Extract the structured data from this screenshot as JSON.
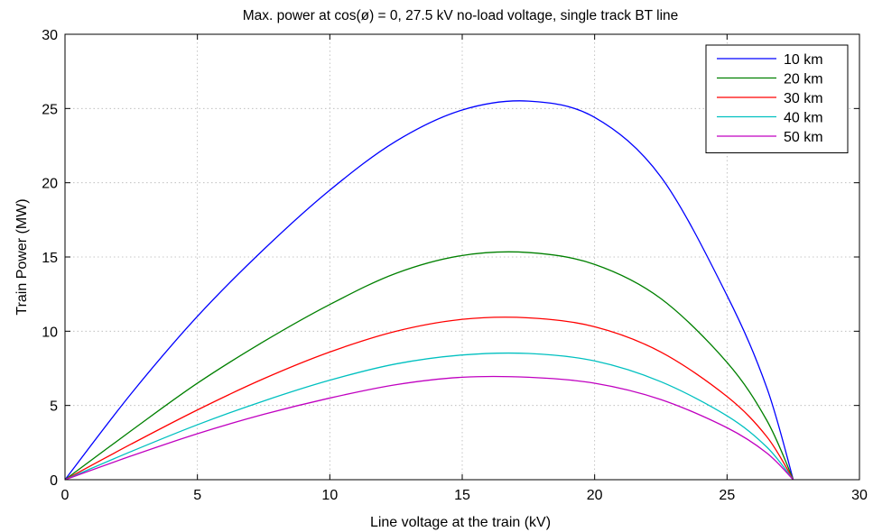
{
  "chart_data": {
    "type": "line",
    "title": "Max. power at cos(ø) = 0, 27.5 kV no-load voltage, single track BT line",
    "xlabel": "Line voltage at the train (kV)",
    "ylabel": "Train Power (MW)",
    "xlim": [
      0,
      30
    ],
    "ylim": [
      0,
      30
    ],
    "xticks": [
      "0",
      "5",
      "10",
      "15",
      "20",
      "25",
      "30"
    ],
    "yticks": [
      "0",
      "5",
      "10",
      "15",
      "20",
      "25",
      "30"
    ],
    "grid": true,
    "legend_position": "top-right",
    "x": [
      0,
      2.5,
      5,
      7.5,
      10,
      12.5,
      15,
      17.5,
      20,
      22.5,
      25,
      26.5,
      27.5
    ],
    "series": [
      {
        "name": "10 km",
        "color": "#0000ff",
        "values": [
          0,
          5.8,
          11.0,
          15.5,
          19.5,
          22.8,
          24.9,
          25.5,
          24.4,
          20.4,
          12.4,
          6.2,
          0
        ]
      },
      {
        "name": "20 km",
        "color": "#008000",
        "values": [
          0,
          3.3,
          6.5,
          9.3,
          11.8,
          13.9,
          15.1,
          15.3,
          14.5,
          12.2,
          7.9,
          4.0,
          0
        ]
      },
      {
        "name": "30 km",
        "color": "#ff0000",
        "values": [
          0,
          2.4,
          4.7,
          6.8,
          8.6,
          10.0,
          10.8,
          10.9,
          10.3,
          8.6,
          5.6,
          2.9,
          0
        ]
      },
      {
        "name": "40 km",
        "color": "#00c0c0",
        "values": [
          0,
          1.9,
          3.7,
          5.3,
          6.7,
          7.8,
          8.4,
          8.5,
          8.0,
          6.6,
          4.3,
          2.2,
          0
        ]
      },
      {
        "name": "50 km",
        "color": "#c000c0",
        "values": [
          0,
          1.6,
          3.1,
          4.4,
          5.5,
          6.4,
          6.9,
          6.9,
          6.5,
          5.4,
          3.5,
          1.8,
          0
        ]
      }
    ]
  }
}
